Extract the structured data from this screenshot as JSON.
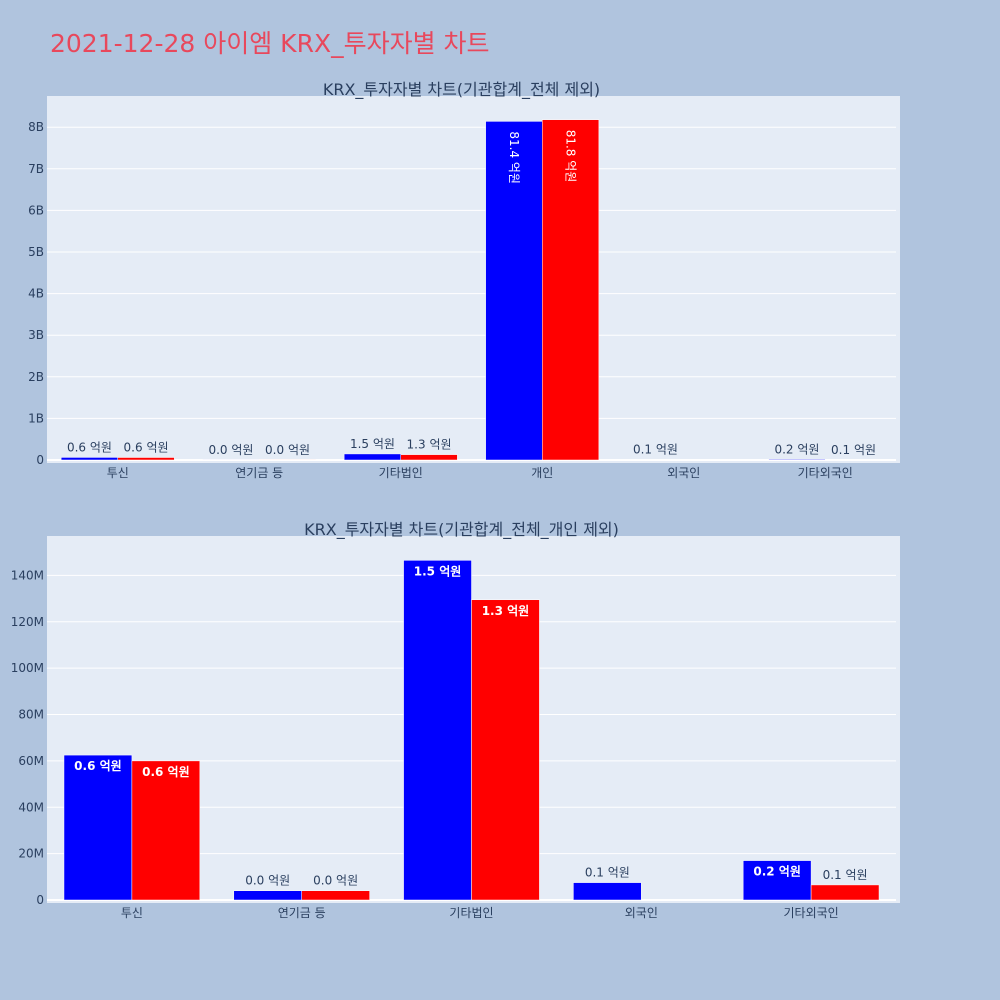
{
  "page": {
    "title": "2021-12-28 아이엠 KRX_투자자별 차트"
  },
  "colors": {
    "series1": "#0000ff",
    "series2": "#ff0000",
    "plot_bg": "#e5ecf6",
    "page_bg": "#b0c4de",
    "title": "#e8485c"
  },
  "chart_data": [
    {
      "type": "bar",
      "title": "KRX_투자자별 차트(기관합계_전체 제외)",
      "categories": [
        "투신",
        "연기금 등",
        "기타법인",
        "개인",
        "외국인",
        "기타외국인"
      ],
      "series": [
        {
          "values": [
            62000000,
            4000000,
            146000000,
            8140000000,
            7000000,
            17000000
          ],
          "labels": [
            "0.6 억원",
            "0.0 억원",
            "1.5 억원",
            "81.4 억원",
            "0.1 억원",
            "0.2 억원"
          ]
        },
        {
          "values": [
            60000000,
            4000000,
            129000000,
            8180000000,
            0,
            6000000
          ],
          "labels": [
            "0.6 억원",
            "0.0 억원",
            "1.3 억원",
            "81.8 억원",
            "",
            "0.1 억원"
          ]
        }
      ],
      "ylim": [
        0,
        8750000000
      ],
      "yticks": [
        0,
        1000000000,
        2000000000,
        3000000000,
        4000000000,
        5000000000,
        6000000000,
        7000000000,
        8000000000
      ],
      "ytick_labels": [
        "0",
        "1B",
        "2B",
        "3B",
        "4B",
        "5B",
        "6B",
        "7B",
        "8B"
      ]
    },
    {
      "type": "bar",
      "title": "KRX_투자자별 차트(기관합계_전체_개인 제외)",
      "categories": [
        "투신",
        "연기금 등",
        "기타법인",
        "외국인",
        "기타외국인"
      ],
      "series": [
        {
          "values": [
            62500000,
            4000000,
            146500000,
            7500000,
            17000000
          ],
          "labels": [
            "0.6 억원",
            "0.0 억원",
            "1.5 억원",
            "0.1 억원",
            "0.2 억원"
          ]
        },
        {
          "values": [
            60000000,
            4000000,
            129500000,
            0,
            6500000
          ],
          "labels": [
            "0.6 억원",
            "0.0 억원",
            "1.3 억원",
            "",
            "0.1 억원"
          ]
        }
      ],
      "ylim": [
        0,
        157000000
      ],
      "yticks": [
        0,
        20000000,
        40000000,
        60000000,
        80000000,
        100000000,
        120000000,
        140000000
      ],
      "ytick_labels": [
        "0",
        "20M",
        "40M",
        "60M",
        "80M",
        "100M",
        "120M",
        "140M"
      ]
    }
  ]
}
